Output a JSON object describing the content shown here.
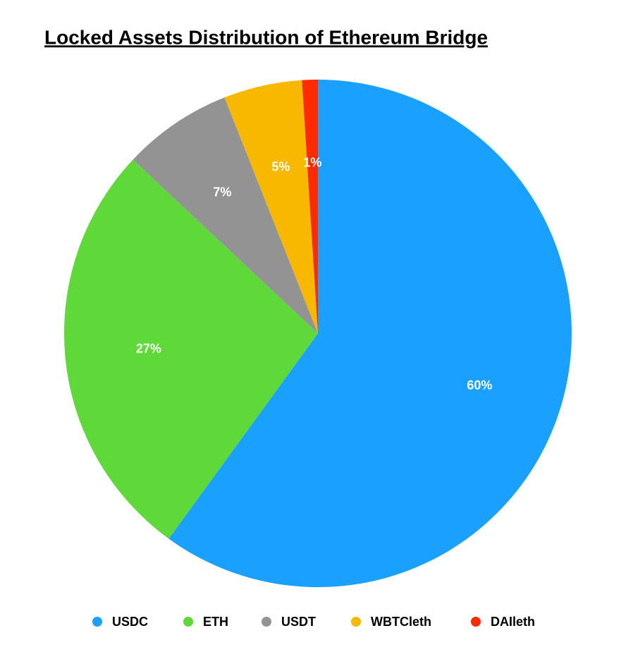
{
  "chart_data": {
    "type": "pie",
    "title": "Locked Assets Distribution of Ethereum Bridge",
    "categories": [
      "USDC",
      "ETH",
      "USDT",
      "WBTCleth",
      "DAIleth"
    ],
    "values": [
      60,
      27,
      7,
      5,
      1
    ],
    "value_labels": [
      "60%",
      "27%",
      "7%",
      "5%",
      "1%"
    ],
    "colors": [
      "#1aa1ff",
      "#5fd93a",
      "#939393",
      "#f9b800",
      "#ff2a00"
    ],
    "legend": "bottom"
  }
}
